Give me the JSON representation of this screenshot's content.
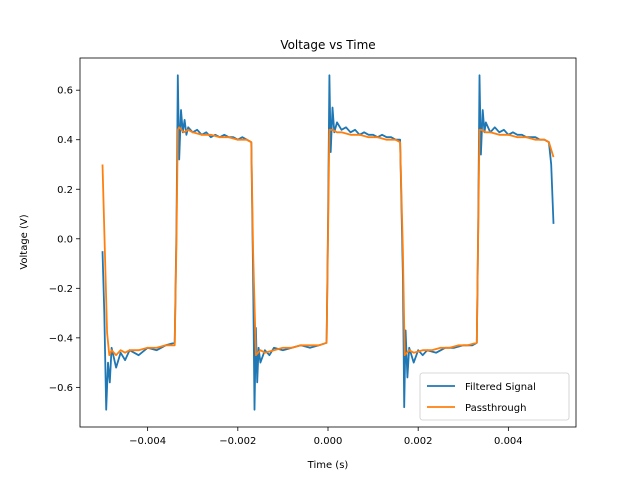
{
  "chart_data": {
    "type": "line",
    "title": "Voltage vs Time",
    "xlabel": "Time (s)",
    "ylabel": "Voltage (V)",
    "xlim": [
      -0.0055,
      0.0055
    ],
    "ylim": [
      -0.76,
      0.73
    ],
    "xticks": [
      -0.004,
      -0.002,
      0.0,
      0.002,
      0.004
    ],
    "xtick_labels": [
      "−0.004",
      "−0.002",
      "0.000",
      "0.002",
      "0.004"
    ],
    "yticks": [
      -0.6,
      -0.4,
      -0.2,
      0.0,
      0.2,
      0.4,
      0.6
    ],
    "ytick_labels": [
      "−0.6",
      "−0.4",
      "−0.2",
      "0.0",
      "0.2",
      "0.4",
      "0.6"
    ],
    "grid": false,
    "legend_position": "lower-right",
    "series": [
      {
        "name": "Filtered Signal",
        "color": "#1f77b4",
        "x": [
          -0.005,
          -0.00496,
          -0.00492,
          -0.00488,
          -0.00484,
          -0.0048,
          -0.0047,
          -0.0046,
          -0.0045,
          -0.0044,
          -0.0042,
          -0.004,
          -0.0038,
          -0.0036,
          -0.0034,
          -0.00336,
          -0.00333,
          -0.0033,
          -0.00326,
          -0.00322,
          -0.00318,
          -0.00314,
          -0.0031,
          -0.003,
          -0.0029,
          -0.0028,
          -0.0027,
          -0.0026,
          -0.0025,
          -0.0024,
          -0.0023,
          -0.0022,
          -0.0021,
          -0.002,
          -0.0019,
          -0.0018,
          -0.0017,
          -0.00166,
          -0.00163,
          -0.0016,
          -0.00157,
          -0.00154,
          -0.0015,
          -0.0014,
          -0.0013,
          -0.0012,
          -0.001,
          -0.0008,
          -0.0006,
          -0.0004,
          -0.0002,
          -3e-05,
          0.0,
          3e-05,
          6e-05,
          0.0001,
          0.00014,
          0.0002,
          0.0003,
          0.0004,
          0.0005,
          0.0006,
          0.0007,
          0.0008,
          0.0009,
          0.001,
          0.0011,
          0.0012,
          0.0013,
          0.0014,
          0.0015,
          0.0016,
          0.00166,
          0.00169,
          0.00172,
          0.00176,
          0.0018,
          0.0019,
          0.002,
          0.0021,
          0.0022,
          0.0024,
          0.0026,
          0.0028,
          0.003,
          0.0032,
          0.0033,
          0.00333,
          0.00336,
          0.00339,
          0.00343,
          0.00347,
          0.0035,
          0.0036,
          0.0037,
          0.0038,
          0.0039,
          0.004,
          0.0041,
          0.0042,
          0.0043,
          0.0044,
          0.0045,
          0.0046,
          0.0047,
          0.0048,
          0.0049,
          0.00495,
          0.005
        ],
        "y": [
          -0.05,
          -0.3,
          -0.69,
          -0.5,
          -0.58,
          -0.44,
          -0.52,
          -0.46,
          -0.49,
          -0.45,
          -0.47,
          -0.44,
          -0.45,
          -0.43,
          -0.42,
          0.05,
          0.66,
          0.32,
          0.52,
          0.43,
          0.48,
          0.42,
          0.45,
          0.43,
          0.44,
          0.42,
          0.43,
          0.41,
          0.42,
          0.41,
          0.42,
          0.41,
          0.41,
          0.4,
          0.41,
          0.4,
          0.39,
          -0.15,
          -0.69,
          -0.36,
          -0.58,
          -0.44,
          -0.5,
          -0.45,
          -0.47,
          -0.44,
          -0.45,
          -0.44,
          -0.43,
          -0.44,
          -0.43,
          -0.42,
          0.05,
          0.66,
          0.35,
          0.53,
          0.43,
          0.47,
          0.44,
          0.45,
          0.43,
          0.44,
          0.42,
          0.43,
          0.42,
          0.42,
          0.41,
          0.42,
          0.41,
          0.41,
          0.4,
          0.4,
          -0.15,
          -0.68,
          -0.37,
          -0.56,
          -0.44,
          -0.5,
          -0.45,
          -0.47,
          -0.45,
          -0.46,
          -0.44,
          -0.44,
          -0.43,
          -0.43,
          -0.42,
          0.05,
          0.66,
          0.34,
          0.52,
          0.43,
          0.47,
          0.43,
          0.45,
          0.43,
          0.44,
          0.42,
          0.43,
          0.42,
          0.42,
          0.41,
          0.41,
          0.41,
          0.4,
          0.4,
          0.39,
          0.3,
          0.06
        ]
      },
      {
        "name": "Passthrough",
        "color": "#ff7f0e",
        "x": [
          -0.005,
          -0.0049,
          -0.00485,
          -0.0048,
          -0.0047,
          -0.0046,
          -0.0045,
          -0.0044,
          -0.0042,
          -0.004,
          -0.0038,
          -0.0036,
          -0.0034,
          -0.00336,
          -0.00333,
          -0.0033,
          -0.0032,
          -0.0031,
          -0.003,
          -0.0028,
          -0.0026,
          -0.0024,
          -0.0022,
          -0.002,
          -0.0018,
          -0.0017,
          -0.00166,
          -0.0016,
          -0.0015,
          -0.0014,
          -0.0012,
          -0.001,
          -0.0008,
          -0.0006,
          -0.0004,
          -0.0002,
          -3e-05,
          0.0,
          3e-05,
          0.0001,
          0.0002,
          0.0003,
          0.0005,
          0.0007,
          0.0009,
          0.0011,
          0.0013,
          0.0015,
          0.0016,
          0.00166,
          0.0017,
          0.0018,
          0.0019,
          0.0021,
          0.0023,
          0.0025,
          0.0027,
          0.0029,
          0.0031,
          0.0033,
          0.00336,
          0.0034,
          0.0035,
          0.0036,
          0.0038,
          0.004,
          0.0042,
          0.0044,
          0.0046,
          0.0048,
          0.0049,
          0.005
        ],
        "y": [
          0.3,
          -0.38,
          -0.47,
          -0.45,
          -0.47,
          -0.45,
          -0.46,
          -0.45,
          -0.45,
          -0.44,
          -0.44,
          -0.43,
          -0.43,
          0.0,
          0.44,
          0.45,
          0.43,
          0.44,
          0.43,
          0.42,
          0.42,
          0.41,
          0.41,
          0.4,
          0.4,
          0.39,
          -0.05,
          -0.47,
          -0.45,
          -0.46,
          -0.45,
          -0.44,
          -0.44,
          -0.43,
          -0.43,
          -0.43,
          -0.42,
          0.0,
          0.44,
          0.44,
          0.43,
          0.43,
          0.42,
          0.42,
          0.41,
          0.41,
          0.4,
          0.4,
          0.39,
          -0.05,
          -0.47,
          -0.45,
          -0.46,
          -0.45,
          -0.45,
          -0.44,
          -0.44,
          -0.43,
          -0.43,
          -0.42,
          0.44,
          0.44,
          0.43,
          0.43,
          0.42,
          0.42,
          0.41,
          0.41,
          0.4,
          0.4,
          0.39,
          0.33
        ]
      }
    ]
  }
}
